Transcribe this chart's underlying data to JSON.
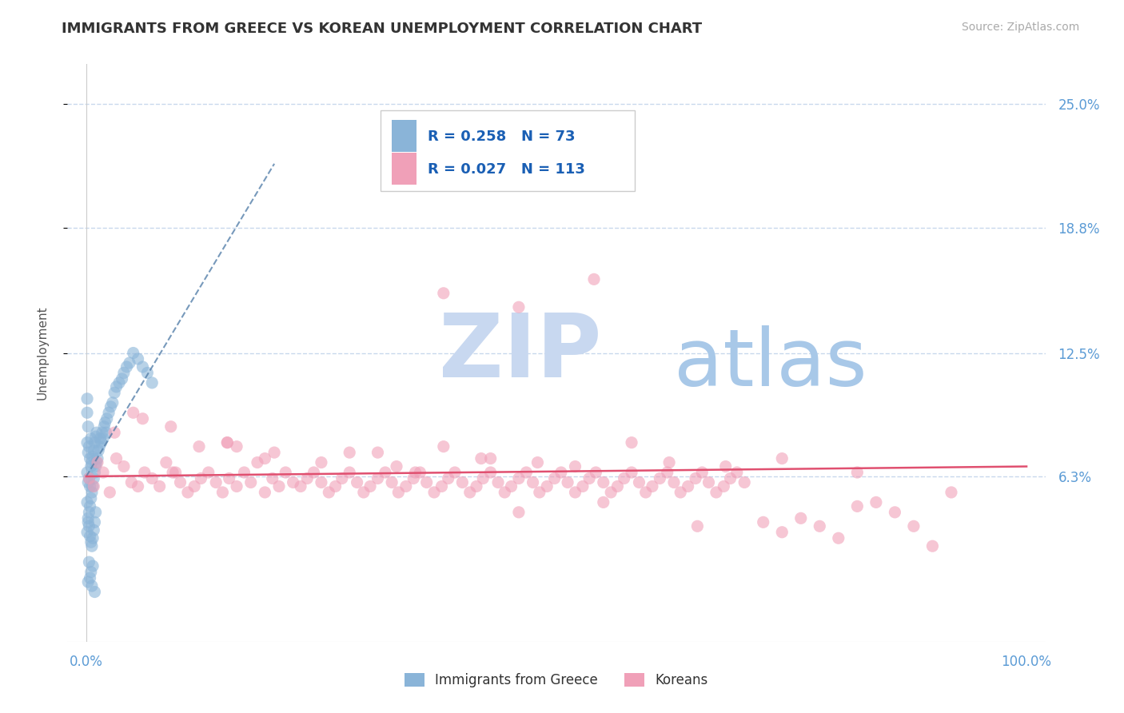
{
  "title": "IMMIGRANTS FROM GREECE VS KOREAN UNEMPLOYMENT CORRELATION CHART",
  "source_text": "Source: ZipAtlas.com",
  "ylabel": "Unemployment",
  "xlim": [
    -0.02,
    1.02
  ],
  "ylim": [
    -0.02,
    0.27
  ],
  "yticks": [
    0.063,
    0.125,
    0.188,
    0.25
  ],
  "ytick_labels": [
    "6.3%",
    "12.5%",
    "18.8%",
    "25.0%"
  ],
  "xtick_labels": [
    "0.0%",
    "100.0%"
  ],
  "title_fontsize": 13,
  "axis_label_color": "#5b9bd5",
  "grid_color": "#c8d8ec",
  "background_color": "#ffffff",
  "watermark_zip": "ZIP",
  "watermark_atlas": "atlas",
  "watermark_color_zip": "#c8d8f0",
  "watermark_color_atlas": "#a8c8e8",
  "series": [
    {
      "name": "Immigrants from Greece",
      "color": "#8ab4d8",
      "R": 0.258,
      "N": 73
    },
    {
      "name": "Koreans",
      "color": "#f0a0b8",
      "R": 0.027,
      "N": 113
    }
  ],
  "greece_x": [
    0.001,
    0.001,
    0.001,
    0.002,
    0.002,
    0.002,
    0.003,
    0.003,
    0.003,
    0.004,
    0.004,
    0.004,
    0.005,
    0.005,
    0.005,
    0.006,
    0.006,
    0.007,
    0.007,
    0.008,
    0.008,
    0.009,
    0.009,
    0.01,
    0.01,
    0.011,
    0.011,
    0.012,
    0.013,
    0.014,
    0.015,
    0.016,
    0.017,
    0.018,
    0.019,
    0.02,
    0.021,
    0.022,
    0.024,
    0.026,
    0.028,
    0.03,
    0.032,
    0.035,
    0.038,
    0.04,
    0.043,
    0.046,
    0.05,
    0.055,
    0.06,
    0.065,
    0.07,
    0.001,
    0.002,
    0.003,
    0.004,
    0.005,
    0.006,
    0.007,
    0.008,
    0.009,
    0.01,
    0.003,
    0.005,
    0.007,
    0.002,
    0.004,
    0.006,
    0.009,
    0.001,
    0.002,
    0.001
  ],
  "greece_y": [
    0.05,
    0.065,
    0.08,
    0.04,
    0.06,
    0.075,
    0.045,
    0.062,
    0.078,
    0.048,
    0.058,
    0.072,
    0.052,
    0.068,
    0.082,
    0.055,
    0.07,
    0.058,
    0.073,
    0.062,
    0.076,
    0.065,
    0.08,
    0.068,
    0.083,
    0.07,
    0.085,
    0.072,
    0.076,
    0.078,
    0.082,
    0.08,
    0.085,
    0.082,
    0.088,
    0.09,
    0.085,
    0.092,
    0.095,
    0.098,
    0.1,
    0.105,
    0.108,
    0.11,
    0.112,
    0.115,
    0.118,
    0.12,
    0.125,
    0.122,
    0.118,
    0.115,
    0.11,
    0.035,
    0.042,
    0.038,
    0.033,
    0.03,
    0.028,
    0.032,
    0.036,
    0.04,
    0.045,
    0.02,
    0.015,
    0.018,
    0.01,
    0.012,
    0.008,
    0.005,
    0.095,
    0.088,
    0.102
  ],
  "korean_x": [
    0.003,
    0.008,
    0.012,
    0.018,
    0.025,
    0.032,
    0.04,
    0.048,
    0.055,
    0.062,
    0.07,
    0.078,
    0.085,
    0.092,
    0.1,
    0.108,
    0.115,
    0.122,
    0.13,
    0.138,
    0.145,
    0.152,
    0.16,
    0.168,
    0.175,
    0.182,
    0.19,
    0.198,
    0.205,
    0.212,
    0.22,
    0.228,
    0.235,
    0.242,
    0.25,
    0.258,
    0.265,
    0.272,
    0.28,
    0.288,
    0.295,
    0.302,
    0.31,
    0.318,
    0.325,
    0.332,
    0.34,
    0.348,
    0.355,
    0.362,
    0.37,
    0.378,
    0.385,
    0.392,
    0.4,
    0.408,
    0.415,
    0.422,
    0.43,
    0.438,
    0.445,
    0.452,
    0.46,
    0.468,
    0.475,
    0.482,
    0.49,
    0.498,
    0.505,
    0.512,
    0.52,
    0.528,
    0.535,
    0.542,
    0.55,
    0.558,
    0.565,
    0.572,
    0.58,
    0.588,
    0.595,
    0.602,
    0.61,
    0.618,
    0.625,
    0.632,
    0.64,
    0.648,
    0.655,
    0.662,
    0.67,
    0.678,
    0.685,
    0.692,
    0.7,
    0.72,
    0.74,
    0.76,
    0.78,
    0.8,
    0.82,
    0.84,
    0.86,
    0.88,
    0.9,
    0.03,
    0.06,
    0.09,
    0.12,
    0.15,
    0.38,
    0.46,
    0.54
  ],
  "korean_y": [
    0.062,
    0.058,
    0.07,
    0.065,
    0.055,
    0.072,
    0.068,
    0.06,
    0.058,
    0.065,
    0.062,
    0.058,
    0.07,
    0.065,
    0.06,
    0.055,
    0.058,
    0.062,
    0.065,
    0.06,
    0.055,
    0.062,
    0.058,
    0.065,
    0.06,
    0.07,
    0.055,
    0.062,
    0.058,
    0.065,
    0.06,
    0.058,
    0.062,
    0.065,
    0.06,
    0.055,
    0.058,
    0.062,
    0.065,
    0.06,
    0.055,
    0.058,
    0.062,
    0.065,
    0.06,
    0.055,
    0.058,
    0.062,
    0.065,
    0.06,
    0.055,
    0.058,
    0.062,
    0.065,
    0.06,
    0.055,
    0.058,
    0.062,
    0.065,
    0.06,
    0.055,
    0.058,
    0.062,
    0.065,
    0.06,
    0.055,
    0.058,
    0.062,
    0.065,
    0.06,
    0.055,
    0.058,
    0.062,
    0.065,
    0.06,
    0.055,
    0.058,
    0.062,
    0.065,
    0.06,
    0.055,
    0.058,
    0.062,
    0.065,
    0.06,
    0.055,
    0.058,
    0.062,
    0.065,
    0.06,
    0.055,
    0.058,
    0.062,
    0.065,
    0.06,
    0.04,
    0.035,
    0.042,
    0.038,
    0.032,
    0.048,
    0.05,
    0.045,
    0.038,
    0.028,
    0.085,
    0.092,
    0.088,
    0.078,
    0.08,
    0.155,
    0.148,
    0.162
  ],
  "korean_outliers_x": [
    0.31,
    0.43,
    0.58,
    0.33,
    0.48,
    0.2,
    0.35,
    0.16,
    0.25,
    0.42,
    0.15,
    0.28,
    0.52,
    0.19,
    0.62,
    0.095,
    0.68,
    0.74,
    0.82,
    0.38,
    0.92,
    0.46,
    0.05,
    0.65,
    0.55
  ],
  "korean_outliers_y": [
    0.075,
    0.072,
    0.08,
    0.068,
    0.07,
    0.075,
    0.065,
    0.078,
    0.07,
    0.072,
    0.08,
    0.075,
    0.068,
    0.072,
    0.07,
    0.065,
    0.068,
    0.072,
    0.065,
    0.078,
    0.055,
    0.045,
    0.095,
    0.038,
    0.05
  ]
}
